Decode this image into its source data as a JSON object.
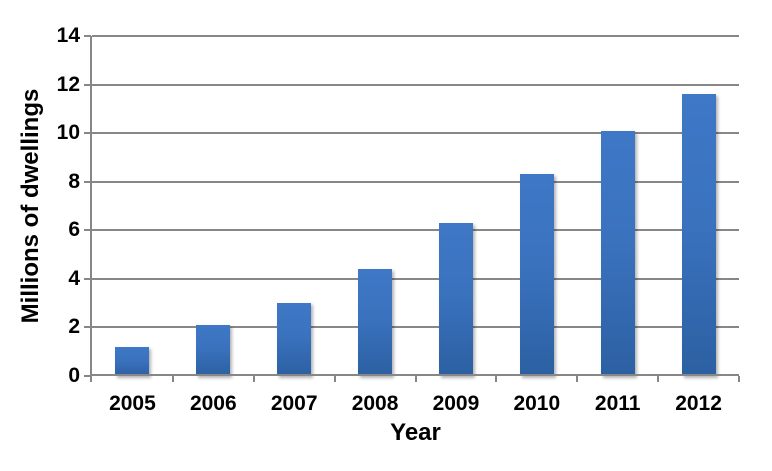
{
  "chart_data": {
    "type": "bar",
    "title": "",
    "categories": [
      "2005",
      "2006",
      "2007",
      "2008",
      "2009",
      "2010",
      "2011",
      "2012"
    ],
    "values": [
      1.2,
      2.1,
      3.0,
      4.4,
      6.3,
      8.3,
      10.1,
      11.6
    ],
    "xlabel": "Year",
    "ylabel": "Millions of dwellings",
    "ylim": [
      0,
      14
    ],
    "yticks": [
      0,
      2,
      4,
      6,
      8,
      10,
      12,
      14
    ],
    "grid": true,
    "legend_position": "none",
    "colors": {
      "bar_fill": "#3A72BE",
      "bar_gradient_top": "#3E78C6",
      "bar_gradient_bottom": "#2C60A2",
      "grid_line": "#878787",
      "axis_line": "#878787",
      "text": "#000000",
      "background": "#FFFFFF"
    }
  }
}
